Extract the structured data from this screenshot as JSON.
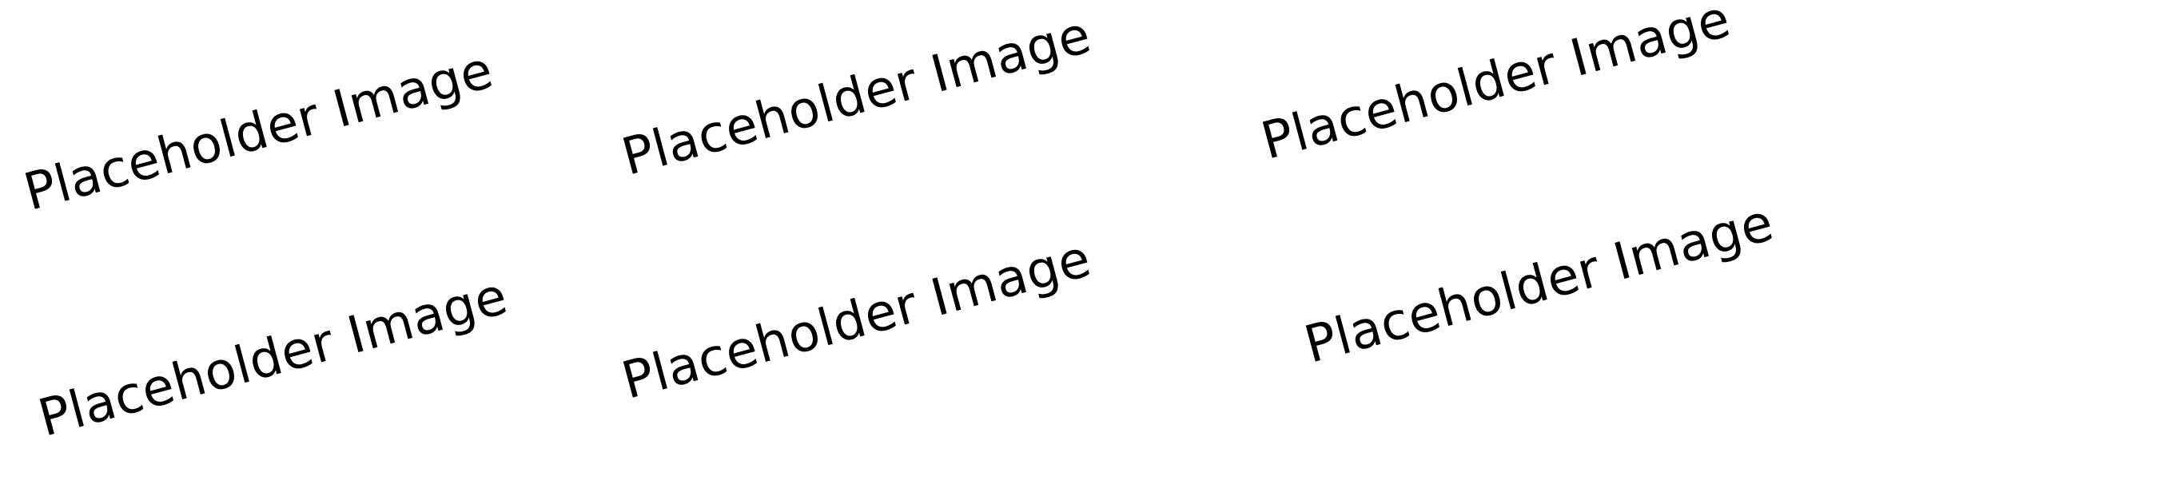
{
  "placeholders": [
    {
      "label": "Placeholder Image"
    },
    {
      "label": "Placeholder Image"
    },
    {
      "label": "Placeholder Image"
    },
    {
      "label": "Placeholder Image"
    },
    {
      "label": "Placeholder Image"
    },
    {
      "label": "Placeholder Image"
    }
  ],
  "colors": {
    "background": "#ffffff",
    "text": "#000000"
  }
}
